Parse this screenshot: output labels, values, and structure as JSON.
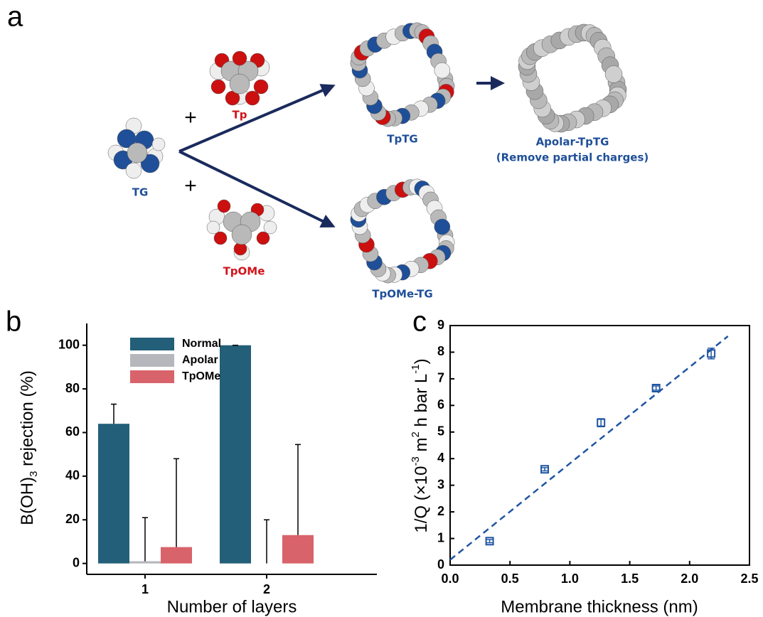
{
  "diagram": {
    "panel_label": "a",
    "plus": [
      "+",
      "+"
    ],
    "labels": {
      "tg": "TG",
      "tp": "Tp",
      "tpome": "TpOMe",
      "tptg": "TpTG",
      "tpome_tg": "TpOMe-TG",
      "apolar": "Apolar-TpTG",
      "apolar_note": "(Remove partial charges)"
    }
  },
  "chart_data": [
    {
      "type": "bar",
      "panel_label": "b",
      "categories": [
        "1",
        "2"
      ],
      "series": [
        {
          "name": "Normal",
          "color": "#235f78",
          "values": [
            64,
            100
          ],
          "errors": [
            9,
            0
          ]
        },
        {
          "name": "Apolar",
          "color": "#b5b7bc",
          "values": [
            1,
            0
          ],
          "errors": [
            20,
            20
          ]
        },
        {
          "name": "TpOMe",
          "color": "#d9636a",
          "values": [
            7.5,
            13
          ],
          "errors": [
            40.5,
            41.5
          ]
        }
      ],
      "ylim": [
        -5,
        110
      ],
      "yticks": [
        0,
        20,
        40,
        60,
        80,
        100
      ],
      "ylabel": [
        "B(OH)",
        "3",
        " rejection (%)"
      ],
      "xlabel": "Number of layers",
      "legend": "top-left"
    },
    {
      "type": "scatter",
      "panel_label": "c",
      "x": [
        0.33,
        0.79,
        1.26,
        1.72,
        2.18
      ],
      "values": [
        0.9,
        3.6,
        5.35,
        6.65,
        7.95
      ],
      "errors": [
        0.06,
        0.06,
        0.15,
        0.08,
        0.2
      ],
      "color": "#1f55a3",
      "fit": {
        "x": [
          0,
          2.32
        ],
        "values": [
          0.2,
          8.6
        ],
        "color": "#1f55a3"
      },
      "xlim": [
        0,
        2.5
      ],
      "xticks": [
        {
          "value": 0,
          "label": "0.0"
        },
        0.5,
        {
          "value": 1,
          "label": "1.0"
        },
        1.5,
        {
          "value": 2,
          "label": "2.0"
        },
        2.5
      ],
      "ylim": [
        0,
        9
      ],
      "yticks": [
        0,
        1,
        2,
        3,
        4,
        5,
        6,
        7,
        8,
        9
      ],
      "ylabel": [
        "1/Q (×10",
        "-3",
        " m",
        "2",
        " h bar L",
        "-1",
        ")"
      ],
      "xlabel": "Membrane thickness (nm)"
    }
  ]
}
